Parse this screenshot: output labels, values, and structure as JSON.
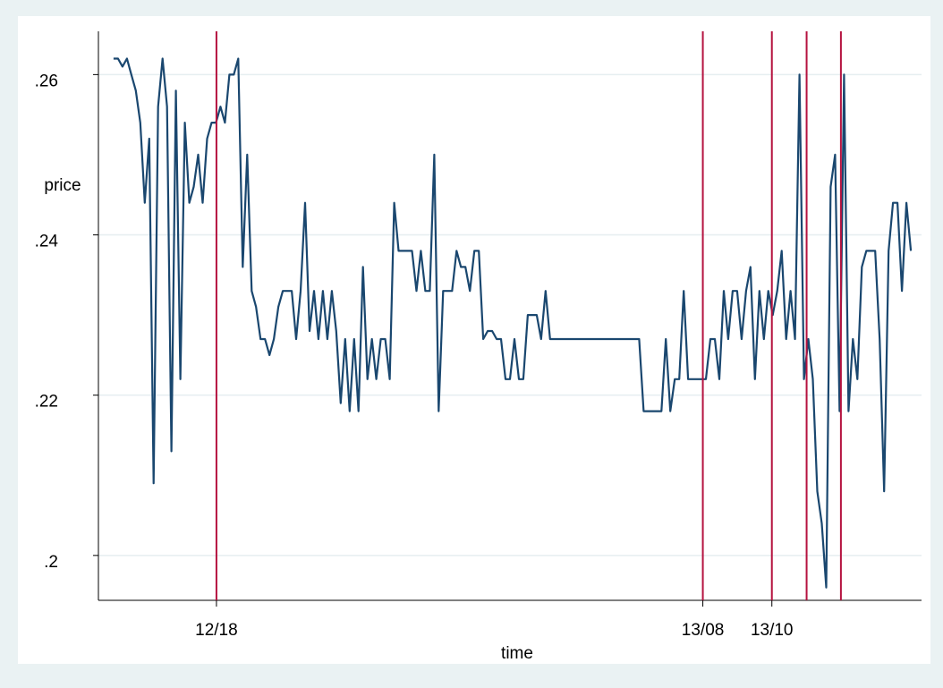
{
  "chart_data": {
    "type": "line",
    "y_label": "price",
    "x_label": "time",
    "series": [
      {
        "name": "price",
        "color": "#1a476f",
        "values": [
          0.262,
          0.262,
          0.261,
          0.262,
          0.26,
          0.258,
          0.254,
          0.244,
          0.252,
          0.209,
          0.256,
          0.262,
          0.256,
          0.213,
          0.258,
          0.222,
          0.254,
          0.244,
          0.246,
          0.25,
          0.244,
          0.252,
          0.254,
          0.254,
          0.256,
          0.254,
          0.26,
          0.26,
          0.262,
          0.236,
          0.25,
          0.233,
          0.231,
          0.227,
          0.227,
          0.225,
          0.227,
          0.231,
          0.233,
          0.233,
          0.233,
          0.227,
          0.233,
          0.244,
          0.228,
          0.233,
          0.227,
          0.233,
          0.227,
          0.233,
          0.228,
          0.219,
          0.227,
          0.218,
          0.227,
          0.218,
          0.236,
          0.222,
          0.227,
          0.222,
          0.227,
          0.227,
          0.222,
          0.244,
          0.238,
          0.238,
          0.238,
          0.238,
          0.233,
          0.238,
          0.233,
          0.233,
          0.25,
          0.218,
          0.233,
          0.233,
          0.233,
          0.238,
          0.236,
          0.236,
          0.233,
          0.238,
          0.238,
          0.227,
          0.228,
          0.228,
          0.227,
          0.227,
          0.222,
          0.222,
          0.227,
          0.222,
          0.222,
          0.23,
          0.23,
          0.23,
          0.227,
          0.233,
          0.227,
          0.227,
          0.227,
          0.227,
          0.227,
          0.227,
          0.227,
          0.227,
          0.227,
          0.227,
          0.227,
          0.227,
          0.227,
          0.227,
          0.227,
          0.227,
          0.227,
          0.227,
          0.227,
          0.227,
          0.227,
          0.218,
          0.218,
          0.218,
          0.218,
          0.218,
          0.227,
          0.218,
          0.222,
          0.222,
          0.233,
          0.222,
          0.222,
          0.222,
          0.222,
          0.222,
          0.227,
          0.227,
          0.222,
          0.233,
          0.227,
          0.233,
          0.233,
          0.227,
          0.233,
          0.236,
          0.222,
          0.233,
          0.227,
          0.233,
          0.23,
          0.233,
          0.238,
          0.227,
          0.233,
          0.227,
          0.26,
          0.222,
          0.227,
          0.222,
          0.208,
          0.204,
          0.196,
          0.246,
          0.25,
          0.218,
          0.26,
          0.218,
          0.227,
          0.222,
          0.236,
          0.238,
          0.238,
          0.238,
          0.227,
          0.208,
          0.238,
          0.244,
          0.244,
          0.233,
          0.244,
          0.238
        ]
      }
    ],
    "xlim": [
      -3.4,
      181.4
    ],
    "xticks": [
      {
        "value": 23.1,
        "label": "12/18"
      },
      {
        "value": 132.3,
        "label": "13/08"
      },
      {
        "value": 147.8,
        "label": "13/10"
      }
    ],
    "reference_lines": {
      "color": "#b5123f",
      "x": [
        23.1,
        132.3,
        147.8,
        155.6,
        163.3
      ]
    },
    "ylim": [
      0.1944,
      0.2654
    ],
    "yticks": [
      {
        "value": 0.2,
        "label": ".2"
      },
      {
        "value": 0.22,
        "label": ".22"
      },
      {
        "value": 0.24,
        "label": ".24"
      },
      {
        "value": 0.26,
        "label": ".26"
      }
    ],
    "grid": true
  }
}
